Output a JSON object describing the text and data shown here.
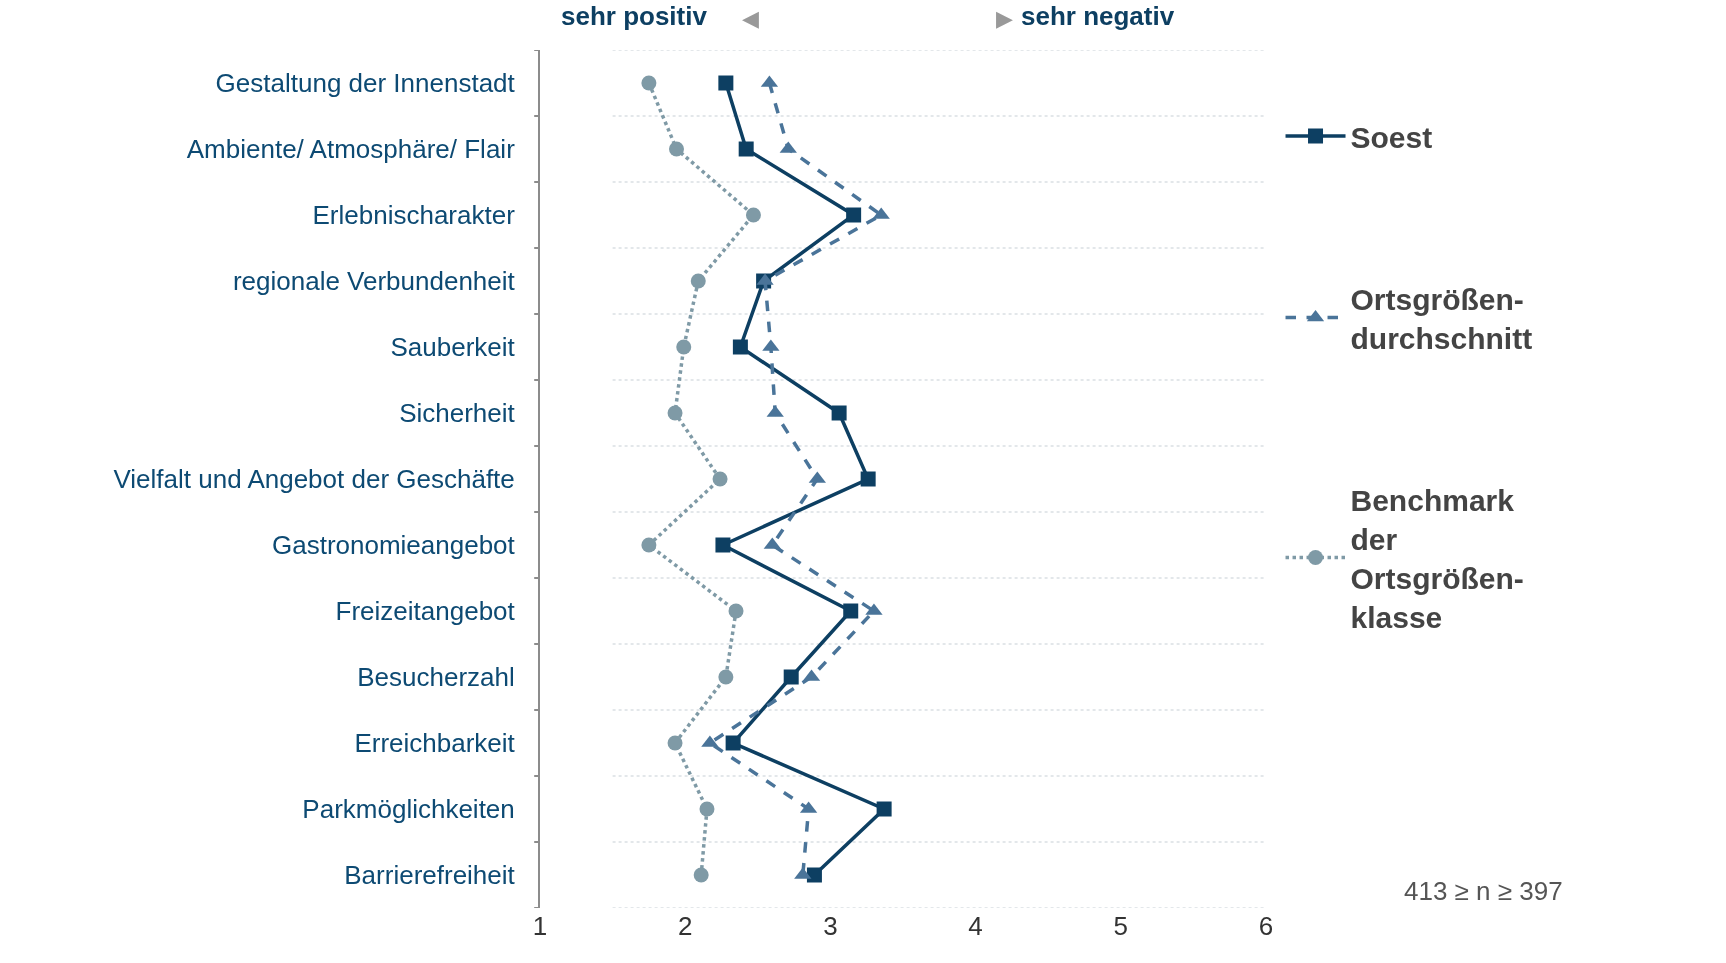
{
  "chart_data": {
    "type": "line",
    "orientation": "horizontal",
    "categories": [
      "Gestaltung der Innenstadt",
      "Ambiente/ Atmosphäre/ Flair",
      "Erlebnischarakter",
      "regionale Verbundenheit",
      "Sauberkeit",
      "Sicherheit",
      "Vielfalt und Angebot der Geschäfte",
      "Gastronomieangebot",
      "Freizeitangebot",
      "Besucherzahl",
      "Erreichbarkeit",
      "Parkmöglichkeiten",
      "Barrierefreiheit"
    ],
    "series": [
      {
        "name": "Soest",
        "color": "#0d3f62",
        "marker": "square",
        "line_style": "solid",
        "values": [
          2.28,
          2.42,
          3.16,
          2.54,
          2.38,
          3.06,
          3.26,
          2.26,
          3.14,
          2.73,
          2.33,
          3.37,
          2.89
        ]
      },
      {
        "name": "Ortsgrößen-\ndurchschnitt",
        "color": "#4a7499",
        "marker": "triangle",
        "line_style": "dashed",
        "values": [
          2.58,
          2.71,
          3.35,
          2.55,
          2.59,
          2.62,
          2.91,
          2.6,
          3.3,
          2.87,
          2.17,
          2.85,
          2.81
        ]
      },
      {
        "name": "Benchmark\nder\nOrtsgrößen-\nklasse",
        "color": "#7f9aa6",
        "marker": "circle",
        "line_style": "dotted",
        "values": [
          1.75,
          1.94,
          2.47,
          2.09,
          1.99,
          1.93,
          2.24,
          1.75,
          2.35,
          2.28,
          1.93,
          2.15,
          2.11
        ]
      }
    ],
    "xlim": [
      1,
      6
    ],
    "xticks": [
      1,
      2,
      3,
      4,
      5,
      6
    ],
    "grid": "y",
    "legend": "right",
    "annotations": [
      "sehr positiv",
      "◀",
      "▶",
      "sehr negativ",
      "413 ≥ n ≥ 397"
    ]
  }
}
